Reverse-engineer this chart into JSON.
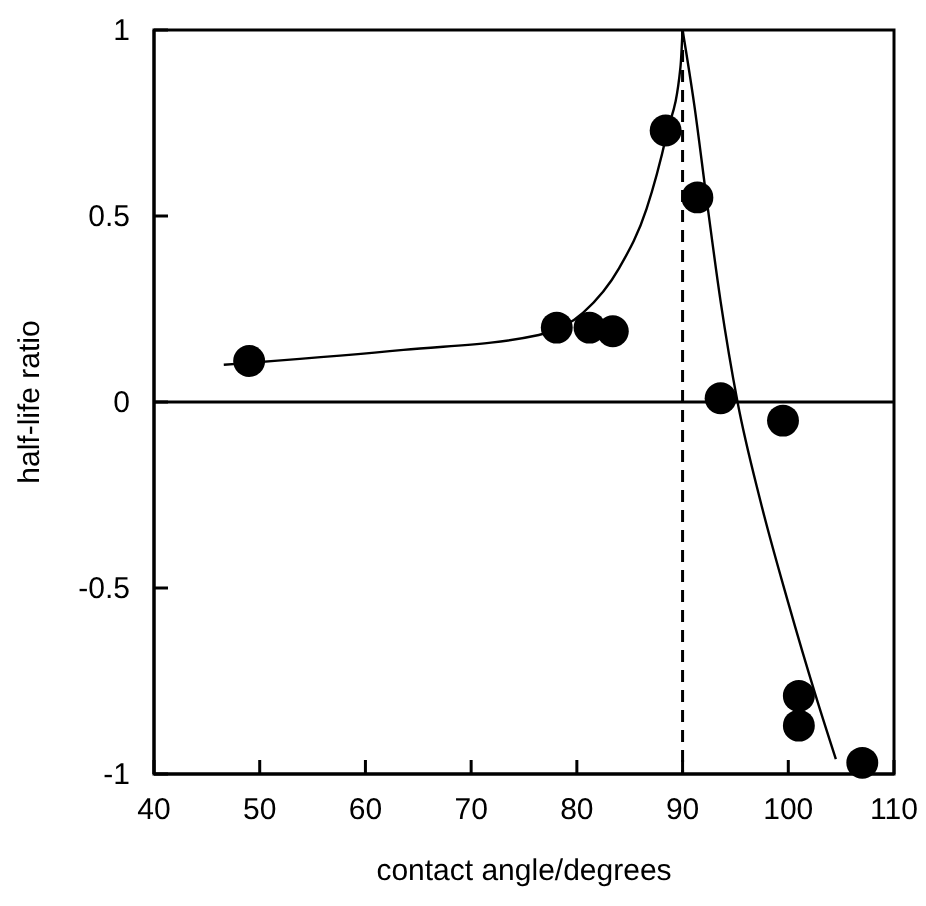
{
  "chart_data": {
    "type": "scatter",
    "xlabel": "contact angle/degrees",
    "ylabel": "half-life ratio",
    "xlim": [
      40,
      110
    ],
    "ylim": [
      -1,
      1
    ],
    "xticks": [
      40,
      50,
      60,
      70,
      80,
      90,
      100,
      110
    ],
    "yticks": [
      -1,
      -0.5,
      0,
      0.5,
      1
    ],
    "grid": false,
    "marker": "circle",
    "series": [
      {
        "color": "#000000",
        "x": [
          49.0,
          78.1,
          81.2,
          83.4,
          88.4,
          91.4,
          93.6,
          99.5,
          101.0,
          101.0,
          107.0
        ],
        "values": [
          0.11,
          0.2,
          0.2,
          0.19,
          0.73,
          0.55,
          0.01,
          -0.05,
          -0.79,
          -0.87,
          -0.97
        ]
      },
      {
        "type": "line",
        "color": "#000000",
        "marker": "none",
        "line_style": "solid",
        "x": [
          46.6,
          63.6,
          76.4,
          80.6,
          84.0,
          86.6,
          88.5,
          89.8,
          90.0
        ],
        "values": [
          0.1,
          0.14,
          0.18,
          0.24,
          0.36,
          0.52,
          0.72,
          0.9,
          1.0
        ]
      },
      {
        "type": "line",
        "color": "#000000",
        "marker": "none",
        "line_style": "solid",
        "x": [
          90.0,
          91.1,
          92.3,
          93.6,
          95.2,
          97.4,
          100.0,
          102.6,
          104.5
        ],
        "values": [
          1.0,
          0.8,
          0.54,
          0.27,
          0.0,
          -0.27,
          -0.54,
          -0.79,
          -0.96
        ]
      }
    ],
    "ref_lines": [
      {
        "axis": "y",
        "value": 0,
        "line_style": "solid"
      },
      {
        "axis": "x",
        "value": 90,
        "line_style": "dashed"
      }
    ]
  }
}
